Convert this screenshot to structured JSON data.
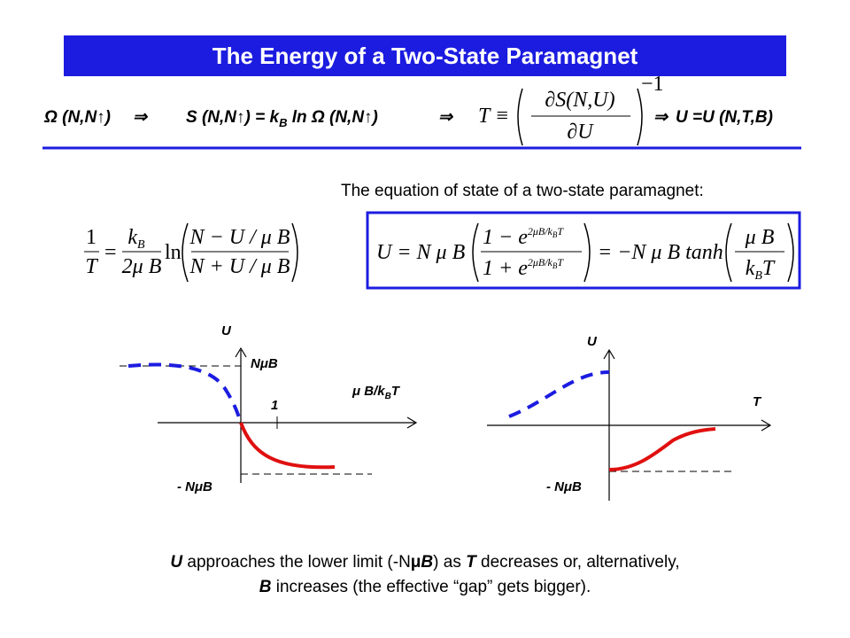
{
  "title": "The Energy of a Two-State Paramagnet",
  "derivation": {
    "omega": "Ω (N,N↑)",
    "arrow": "⇒",
    "entropy": {
      "lhs": "S (N,N↑) = k",
      "sub": "B",
      "rhs": " ln Ω (N,N↑)"
    },
    "temperature": {
      "lhs": "T ≡",
      "numerator": "∂S(N,U)",
      "denominator": "∂U",
      "exponent": "−1"
    },
    "result": "U =U (N,T,B)"
  },
  "eos_caption": "The equation of state of a two-state paramagnet:",
  "temperature_equation": {
    "one": "1",
    "t": "T",
    "equals": "=",
    "k": "k",
    "k_sub": "B",
    "two_mu_b": "2μ B",
    "ln": "ln",
    "numerator": "N − U / μ B",
    "denominator": "N + U / μ B"
  },
  "energy_equation": {
    "lhs": "U = N μ B",
    "numerator": "1 − e",
    "denominator": "1 + e",
    "exponent": "2μB/k",
    "exponent_sub": "B",
    "exponent_end": "T",
    "middle": "= −N μ B tanh",
    "arg_numerator": "μ B",
    "arg_k": "k",
    "arg_sub": "B",
    "arg_t": "T"
  },
  "plots": [
    {
      "y_label": "U",
      "top_label": "NμB",
      "tick_label": "1",
      "x_label": "μ B/k",
      "x_label_sub": "B",
      "x_label_end": "T",
      "bottom_label": "- NμB"
    },
    {
      "y_label": "U",
      "x_label": "T",
      "bottom_label": "- NμB"
    }
  ],
  "conclusion": {
    "line1": [
      "U",
      " approaches the lower limit (-N",
      "μ",
      "B",
      ") as ",
      "T",
      " decreases or, alternatively,"
    ],
    "line2": [
      "B",
      " increases (the effective “gap” gets bigger)."
    ]
  }
}
